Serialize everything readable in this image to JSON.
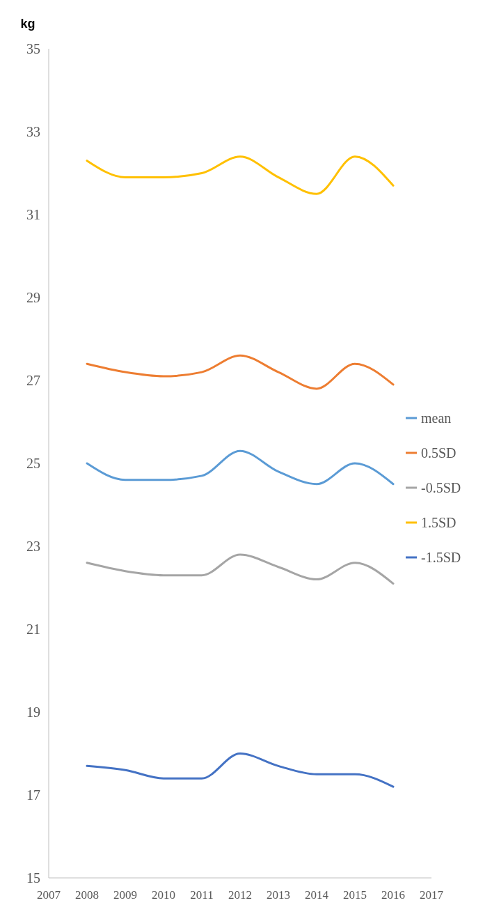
{
  "chart_data": {
    "type": "line",
    "ylabel": "kg",
    "x": [
      2008,
      2009,
      2010,
      2011,
      2012,
      2013,
      2014,
      2015,
      2016
    ],
    "xlim": [
      2007,
      2017
    ],
    "xticks": [
      2007,
      2008,
      2009,
      2010,
      2011,
      2012,
      2013,
      2014,
      2015,
      2016,
      2017
    ],
    "ylim": [
      15,
      35
    ],
    "yticks": [
      15,
      17,
      19,
      21,
      23,
      25,
      27,
      29,
      31,
      33,
      35
    ],
    "grid": false,
    "legend": "right",
    "marker": "none",
    "line_style": "solid",
    "series": [
      {
        "name": "mean",
        "color": "#5b9bd5",
        "values": [
          25.0,
          24.6,
          24.6,
          24.7,
          25.3,
          24.8,
          24.5,
          25.0,
          24.5
        ]
      },
      {
        "name": "0.5SD",
        "color": "#ed7d31",
        "values": [
          27.4,
          27.2,
          27.1,
          27.2,
          27.6,
          27.2,
          26.8,
          27.4,
          26.9
        ]
      },
      {
        "name": "-0.5SD",
        "color": "#a5a5a5",
        "values": [
          22.6,
          22.4,
          22.3,
          22.3,
          22.8,
          22.5,
          22.2,
          22.6,
          22.1
        ]
      },
      {
        "name": "1.5SD",
        "color": "#ffc000",
        "values": [
          32.3,
          31.9,
          31.9,
          32.0,
          32.4,
          31.9,
          31.5,
          32.4,
          31.7
        ]
      },
      {
        "name": "-1.5SD",
        "color": "#4472c4",
        "values": [
          17.7,
          17.6,
          17.4,
          17.4,
          18.0,
          17.7,
          17.5,
          17.5,
          17.2
        ]
      }
    ]
  }
}
